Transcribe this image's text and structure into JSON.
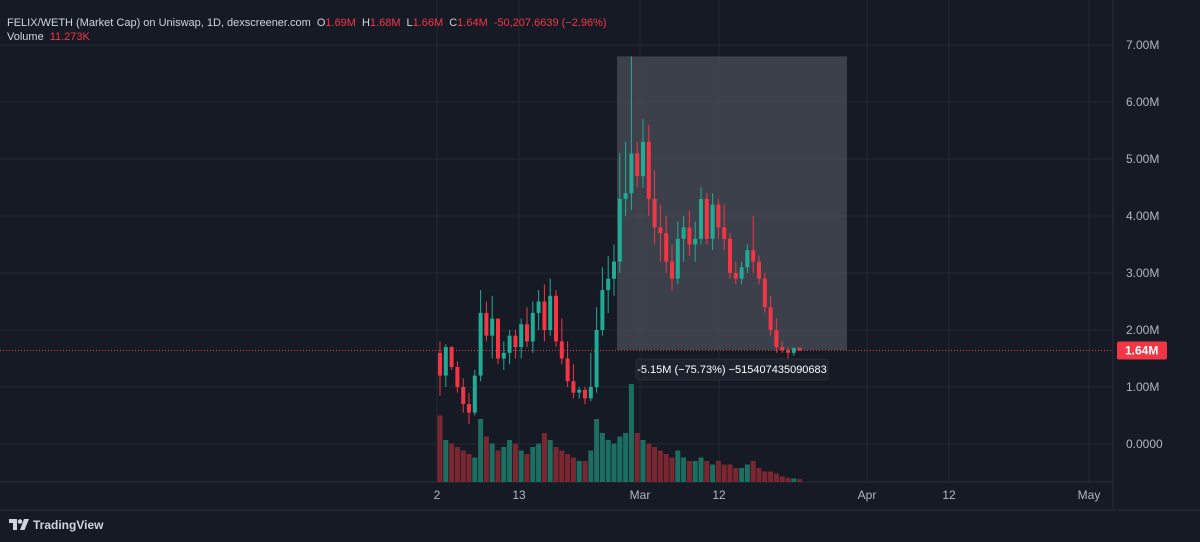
{
  "header": {
    "title": "FELIX/WETH (Market Cap) on Uniswap, 1D, dexscreener.com",
    "o_label": "O",
    "o_value": "1.69M",
    "h_label": "H",
    "h_value": "1.68M",
    "l_label": "L",
    "l_value": "1.66M",
    "c_label": "C",
    "c_value": "1.64M",
    "change": "-50,207.6639 (−2.96%)",
    "volume_label": "Volume",
    "volume_value": "11.273K"
  },
  "branding": {
    "name": "TradingView",
    "icon": "tradingview-logo-icon"
  },
  "colors": {
    "background": "#161a25",
    "up": "#22ab94",
    "down": "#f23645",
    "up_volume": "#1c6e60",
    "down_volume": "#7a2731",
    "grid": "#242832",
    "range_box": "#4a4d57"
  },
  "chart_data": {
    "type": "candlestick",
    "price_axis": {
      "ticks": [
        "7.00M",
        "6.00M",
        "5.00M",
        "4.00M",
        "3.00M",
        "2.00M",
        "1.00M",
        "0.0000"
      ],
      "current_label": "1.64M",
      "current_value": 1.64,
      "unit": "M"
    },
    "time_axis": {
      "ticks": [
        "2",
        "13",
        "Mar",
        "12",
        "Apr",
        "12",
        "May"
      ]
    },
    "measure_tool": {
      "start_value": 6.8,
      "end_value": 1.65,
      "label": "-5.15M (−75.73%) −515407435090683"
    },
    "candles": [
      [
        1.6,
        1.8,
        0.85,
        1.2
      ],
      [
        1.2,
        1.75,
        1.0,
        1.7
      ],
      [
        1.7,
        1.72,
        1.3,
        1.35
      ],
      [
        1.35,
        1.45,
        0.9,
        1.0
      ],
      [
        1.0,
        1.15,
        0.55,
        0.7
      ],
      [
        0.7,
        0.9,
        0.35,
        0.55
      ],
      [
        0.55,
        1.3,
        0.5,
        1.2
      ],
      [
        1.2,
        2.7,
        1.1,
        2.3
      ],
      [
        2.3,
        2.5,
        1.8,
        1.9
      ],
      [
        1.9,
        2.6,
        1.5,
        2.2
      ],
      [
        2.2,
        2.2,
        1.4,
        1.5
      ],
      [
        1.5,
        1.8,
        1.3,
        1.6
      ],
      [
        1.6,
        2.0,
        1.4,
        1.9
      ],
      [
        1.9,
        2.0,
        1.5,
        1.7
      ],
      [
        1.7,
        2.2,
        1.5,
        2.1
      ],
      [
        2.1,
        2.4,
        1.7,
        1.8
      ],
      [
        1.8,
        2.5,
        1.6,
        2.3
      ],
      [
        2.3,
        2.7,
        2.0,
        2.5
      ],
      [
        2.5,
        2.8,
        1.8,
        2.0
      ],
      [
        2.0,
        2.9,
        1.9,
        2.6
      ],
      [
        2.6,
        2.7,
        1.7,
        1.8
      ],
      [
        1.8,
        2.2,
        1.4,
        1.5
      ],
      [
        1.5,
        1.8,
        1.0,
        1.1
      ],
      [
        1.1,
        1.4,
        0.8,
        0.9
      ],
      [
        0.9,
        1.0,
        0.8,
        0.95
      ],
      [
        0.95,
        1.0,
        0.7,
        0.8
      ],
      [
        0.8,
        1.6,
        0.75,
        1.0
      ],
      [
        1.0,
        2.4,
        0.9,
        2.0
      ],
      [
        2.0,
        3.1,
        1.9,
        2.7
      ],
      [
        2.7,
        3.3,
        2.3,
        2.9
      ],
      [
        2.9,
        3.5,
        2.6,
        3.2
      ],
      [
        3.2,
        5.1,
        3.0,
        4.3
      ],
      [
        4.3,
        5.3,
        4.0,
        4.4
      ],
      [
        4.4,
        6.8,
        4.1,
        5.1
      ],
      [
        5.1,
        5.3,
        4.5,
        4.7
      ],
      [
        4.7,
        5.7,
        4.5,
        5.3
      ],
      [
        5.3,
        5.6,
        4.0,
        4.3
      ],
      [
        4.3,
        4.8,
        3.5,
        3.8
      ],
      [
        3.8,
        4.2,
        3.2,
        3.7
      ],
      [
        3.7,
        4.0,
        3.0,
        3.2
      ],
      [
        3.2,
        3.5,
        2.7,
        2.9
      ],
      [
        2.9,
        3.9,
        2.8,
        3.6
      ],
      [
        3.6,
        4.0,
        3.2,
        3.8
      ],
      [
        3.8,
        4.1,
        3.3,
        3.5
      ],
      [
        3.5,
        3.9,
        3.2,
        3.6
      ],
      [
        3.6,
        4.5,
        3.5,
        4.3
      ],
      [
        4.3,
        4.4,
        3.5,
        3.6
      ],
      [
        3.6,
        4.4,
        3.4,
        4.2
      ],
      [
        4.2,
        4.3,
        3.6,
        3.8
      ],
      [
        3.8,
        4.2,
        3.4,
        3.6
      ],
      [
        3.6,
        3.7,
        2.9,
        3.0
      ],
      [
        3.0,
        3.2,
        2.8,
        2.9
      ],
      [
        2.9,
        3.2,
        2.8,
        3.1
      ],
      [
        3.1,
        3.5,
        3.0,
        3.4
      ],
      [
        3.4,
        4.0,
        3.0,
        3.2
      ],
      [
        3.2,
        3.3,
        2.8,
        2.9
      ],
      [
        2.9,
        3.0,
        2.3,
        2.4
      ],
      [
        2.4,
        2.6,
        1.9,
        2.0
      ],
      [
        2.0,
        2.2,
        1.6,
        1.7
      ],
      [
        1.7,
        1.8,
        1.6,
        1.65
      ],
      [
        1.65,
        1.7,
        1.5,
        1.6
      ],
      [
        1.6,
        1.7,
        1.55,
        1.68
      ],
      [
        1.69,
        1.68,
        1.66,
        1.64
      ]
    ],
    "volumes": [
      0.95,
      0.6,
      0.55,
      0.5,
      0.45,
      0.4,
      0.35,
      0.9,
      0.65,
      0.55,
      0.45,
      0.5,
      0.6,
      0.55,
      0.45,
      0.4,
      0.5,
      0.55,
      0.7,
      0.6,
      0.5,
      0.45,
      0.4,
      0.35,
      0.3,
      0.3,
      0.45,
      0.9,
      0.7,
      0.6,
      0.55,
      0.65,
      0.7,
      1.4,
      0.7,
      0.6,
      0.55,
      0.5,
      0.45,
      0.4,
      0.35,
      0.45,
      0.35,
      0.3,
      0.3,
      0.35,
      0.3,
      0.25,
      0.3,
      0.25,
      0.25,
      0.2,
      0.2,
      0.25,
      0.3,
      0.2,
      0.15,
      0.15,
      0.12,
      0.08,
      0.06,
      0.05,
      0.04
    ]
  }
}
